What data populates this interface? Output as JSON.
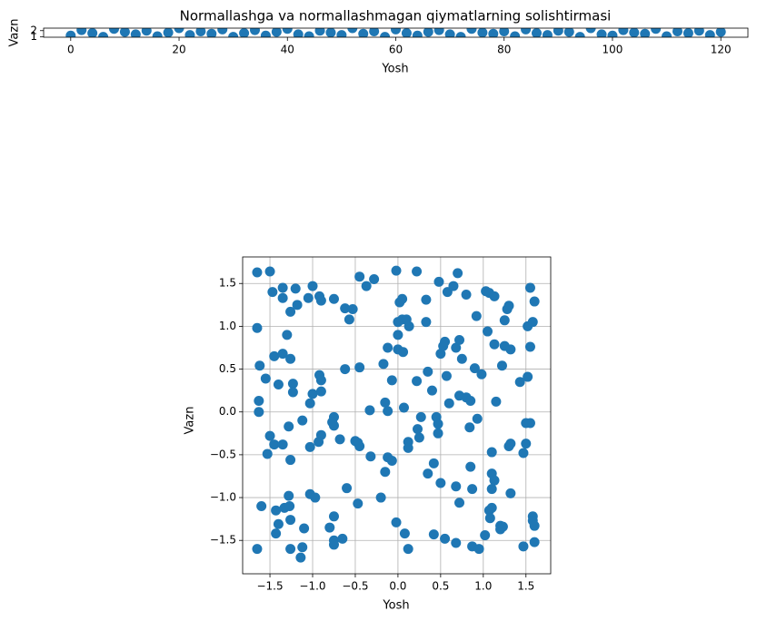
{
  "chart_data": [
    {
      "type": "scatter",
      "title": "Normallashga va normallashmagan qiymatlarning solishtirmasi",
      "xlabel": "Yosh",
      "ylabel": "Vazn",
      "color": "#1f77b4",
      "grid": false,
      "xlim": [
        -5,
        125
      ],
      "ylim": [
        0.95,
        2.4
      ],
      "xticks": [
        0,
        20,
        40,
        60,
        80,
        100,
        120
      ],
      "yticks": [
        1,
        2
      ],
      "x": [
        0,
        2,
        4,
        6,
        8,
        10,
        12,
        14,
        16,
        18,
        20,
        22,
        24,
        26,
        28,
        30,
        32,
        34,
        36,
        38,
        40,
        42,
        44,
        46,
        48,
        50,
        52,
        54,
        56,
        58,
        60,
        62,
        64,
        66,
        68,
        70,
        72,
        74,
        76,
        78,
        80,
        82,
        84,
        86,
        88,
        90,
        92,
        94,
        96,
        98,
        100,
        102,
        104,
        106,
        108,
        110,
        112,
        114,
        116,
        118,
        120
      ],
      "values": [
        1.2,
        2.1,
        1.6,
        1.0,
        2.3,
        1.8,
        1.4,
        2.0,
        1.1,
        1.7,
        2.4,
        1.3,
        1.9,
        1.5,
        2.2,
        1.0,
        1.6,
        2.1,
        1.2,
        1.8,
        2.3,
        1.4,
        1.1,
        2.0,
        1.7,
        1.3,
        2.4,
        1.5,
        1.9,
        1.0,
        2.2,
        1.6,
        1.2,
        1.8,
        2.1,
        1.4,
        1.0,
        2.3,
        1.7,
        1.5,
        1.9,
        1.1,
        2.2,
        1.6,
        1.3,
        2.0,
        1.8,
        1.0,
        2.4,
        1.4,
        1.2,
        2.1,
        1.7,
        1.5,
        2.3,
        1.1,
        1.9,
        1.6,
        2.0,
        1.3,
        1.8
      ]
    },
    {
      "type": "scatter",
      "xlabel": "Yosh",
      "ylabel": "Vazn",
      "color": "#1f77b4",
      "grid": true,
      "xlim": [
        -1.82,
        1.79
      ],
      "ylim": [
        -1.89,
        1.81
      ],
      "xticks": [
        {
          "value": -1.5,
          "label": "−1.5"
        },
        {
          "value": -1,
          "label": "−1.0"
        },
        {
          "value": -0.5,
          "label": "−0.5"
        },
        {
          "value": 0,
          "label": "0.0"
        },
        {
          "value": 0.5,
          "label": "0.5"
        },
        {
          "value": 1,
          "label": "1.0"
        },
        {
          "value": 1.5,
          "label": "1.5"
        }
      ],
      "yticks": [
        {
          "value": -1.5,
          "label": "−1.5"
        },
        {
          "value": -1,
          "label": "−1.0"
        },
        {
          "value": -0.5,
          "label": "−0.5"
        },
        {
          "value": 0,
          "label": "0.0"
        },
        {
          "value": 0.5,
          "label": "0.5"
        },
        {
          "value": 1,
          "label": "1.0"
        },
        {
          "value": 1.5,
          "label": "1.5"
        }
      ],
      "x": [
        -1.65,
        -1.5,
        -1.65,
        -1.62,
        -1.63,
        -1.63,
        -1.6,
        -1.65,
        -1.55,
        -1.53,
        -1.5,
        -1.47,
        -1.45,
        -1.45,
        -1.43,
        -1.43,
        -1.4,
        -1.4,
        -1.35,
        -1.35,
        -1.35,
        -1.35,
        -1.33,
        -1.3,
        -1.28,
        -1.28,
        -1.27,
        -1.26,
        -1.26,
        -1.26,
        -1.26,
        -1.26,
        -1.23,
        -1.23,
        -1.2,
        -1.18,
        -1.12,
        -1.12,
        -1.1,
        -1.14,
        -1.05,
        -1.03,
        -1.03,
        -1.03,
        -1,
        -1,
        -0.97,
        -0.92,
        -0.9,
        -0.92,
        -0.9,
        -0.9,
        -0.9,
        -0.93,
        -0.8,
        -0.75,
        -0.75,
        -0.75,
        -0.77,
        -0.75,
        -0.75,
        -0.75,
        -0.68,
        -0.65,
        -0.62,
        -0.62,
        -0.6,
        -0.57,
        -0.53,
        -0.5,
        -0.45,
        -0.45,
        -0.45,
        -0.47,
        -0.47,
        -0.37,
        -0.33,
        -0.32,
        -0.28,
        -0.2,
        -0.17,
        -0.15,
        -0.15,
        -0.12,
        -0.12,
        -0.12,
        -0.07,
        -0.07,
        -0.02,
        -0.02,
        0,
        0,
        0,
        0.02,
        0.05,
        0.05,
        0.06,
        0.07,
        0.08,
        0.1,
        0.12,
        0.12,
        0.12,
        0.13,
        0.22,
        0.22,
        0.23,
        0.25,
        0.27,
        0.33,
        0.33,
        0.35,
        0.35,
        0.4,
        0.42,
        0.42,
        0.45,
        0.47,
        0.47,
        0.48,
        0.5,
        0.5,
        0.53,
        0.55,
        0.55,
        0.57,
        0.58,
        0.6,
        0.65,
        0.68,
        0.68,
        0.68,
        0.7,
        0.72,
        0.72,
        0.72,
        0.75,
        0.8,
        0.8,
        0.85,
        0.84,
        0.85,
        0.87,
        0.87,
        0.9,
        0.92,
        0.93,
        0.95,
        0.98,
        1.02,
        1.03,
        1.05,
        1.07,
        1.07,
        1.08,
        1.1,
        1.1,
        1.1,
        1.1,
        1.13,
        1.13,
        1.13,
        1.15,
        1.2,
        1.2,
        1.22,
        1.23,
        1.25,
        1.25,
        1.28,
        1.3,
        1.3,
        1.32,
        1.32,
        1.32,
        1.43,
        1.47,
        1.47,
        1.5,
        1.5,
        1.52,
        1.52,
        1.55,
        1.55,
        1.55,
        1.58,
        1.58,
        1.58,
        1.6,
        1.6,
        1.6
      ],
      "values": [
        1.63,
        1.64,
        0.98,
        0.54,
        0.13,
        0,
        -1.1,
        -1.6,
        0.39,
        -0.49,
        -0.28,
        1.4,
        0.65,
        -0.38,
        -1.15,
        -1.42,
        -1.31,
        0.32,
        1.45,
        1.33,
        0.68,
        -0.38,
        -1.12,
        0.9,
        -0.17,
        -0.98,
        -1.1,
        1.17,
        0.62,
        -0.56,
        -1.26,
        -1.6,
        0.33,
        0.23,
        1.44,
        1.25,
        -0.1,
        -1.58,
        -1.36,
        -1.7,
        1.33,
        0.1,
        -0.41,
        -0.96,
        1.47,
        0.21,
        -1,
        1.35,
        1.3,
        0.43,
        0.37,
        0.24,
        -0.27,
        -0.35,
        -1.35,
        1.32,
        -0.06,
        -0.16,
        -0.12,
        -1.22,
        -1.5,
        -1.55,
        -0.32,
        -1.48,
        1.21,
        0.5,
        -0.89,
        1.08,
        1.2,
        -0.34,
        1.58,
        0.52,
        -0.4,
        -0.36,
        -1.07,
        1.47,
        0.02,
        -0.52,
        1.55,
        -1,
        0.56,
        0.11,
        -0.7,
        0.75,
        0.01,
        -0.53,
        0.37,
        -0.57,
        1.65,
        -1.29,
        1.05,
        0.9,
        0.73,
        1.28,
        1.32,
        1.08,
        0.7,
        0.05,
        -1.42,
        1.08,
        -0.35,
        -0.42,
        -1.6,
        1,
        1.64,
        0.36,
        -0.2,
        -0.3,
        -0.06,
        1.31,
        1.05,
        0.47,
        -0.72,
        0.25,
        -0.6,
        -1.43,
        -0.06,
        -0.14,
        -0.25,
        1.52,
        0.68,
        -0.83,
        0.77,
        0.82,
        -1.48,
        0.42,
        1.4,
        0.1,
        1.47,
        0.75,
        -0.87,
        -1.53,
        1.62,
        0.84,
        0.19,
        -1.06,
        0.62,
        1.37,
        0.17,
        0.13,
        -0.18,
        -0.64,
        -0.9,
        -1.57,
        0.51,
        1.12,
        -0.08,
        -1.6,
        0.44,
        -1.44,
        1.41,
        0.94,
        1.39,
        -1.15,
        -1.24,
        -0.47,
        -0.72,
        -0.9,
        -1.12,
        1.35,
        0.79,
        -0.8,
        0.12,
        -1.33,
        -1.37,
        0.54,
        -1.34,
        1.07,
        0.77,
        1.2,
        1.24,
        -0.4,
        0.73,
        -0.37,
        -0.95,
        0.35,
        -0.48,
        -1.57,
        -0.13,
        -0.37,
        1,
        0.41,
        1.45,
        0.76,
        -0.13,
        1.05,
        -1.22,
        -1.27,
        1.29,
        -1.33,
        -1.52
      ]
    }
  ]
}
